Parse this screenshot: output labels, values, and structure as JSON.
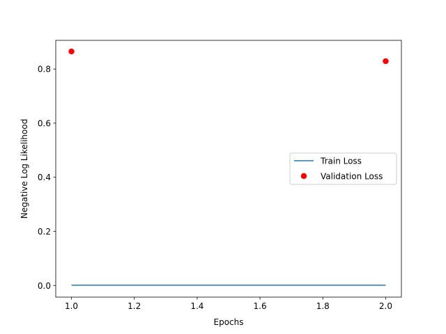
{
  "chart_data": {
    "type": "line",
    "xlabel": "Epochs",
    "ylabel": "Negative Log Likelihood",
    "xlim": [
      0.95,
      2.05
    ],
    "ylim": [
      -0.043,
      0.906
    ],
    "xticks": [
      "1.0",
      "1.2",
      "1.4",
      "1.6",
      "1.8",
      "2.0"
    ],
    "yticks": [
      "0.0",
      "0.2",
      "0.4",
      "0.6",
      "0.8"
    ],
    "grid": false,
    "legend_position": "center-right",
    "series": [
      {
        "name": "Train Loss",
        "kind": "line",
        "color": "#1f77b4",
        "x": [
          1.0,
          2.0
        ],
        "y": [
          0.001,
          0.001
        ]
      },
      {
        "name": "Validation Loss",
        "kind": "scatter",
        "color": "#ff0000",
        "x": [
          1.0,
          2.0
        ],
        "y": [
          0.865,
          0.829
        ]
      }
    ]
  }
}
